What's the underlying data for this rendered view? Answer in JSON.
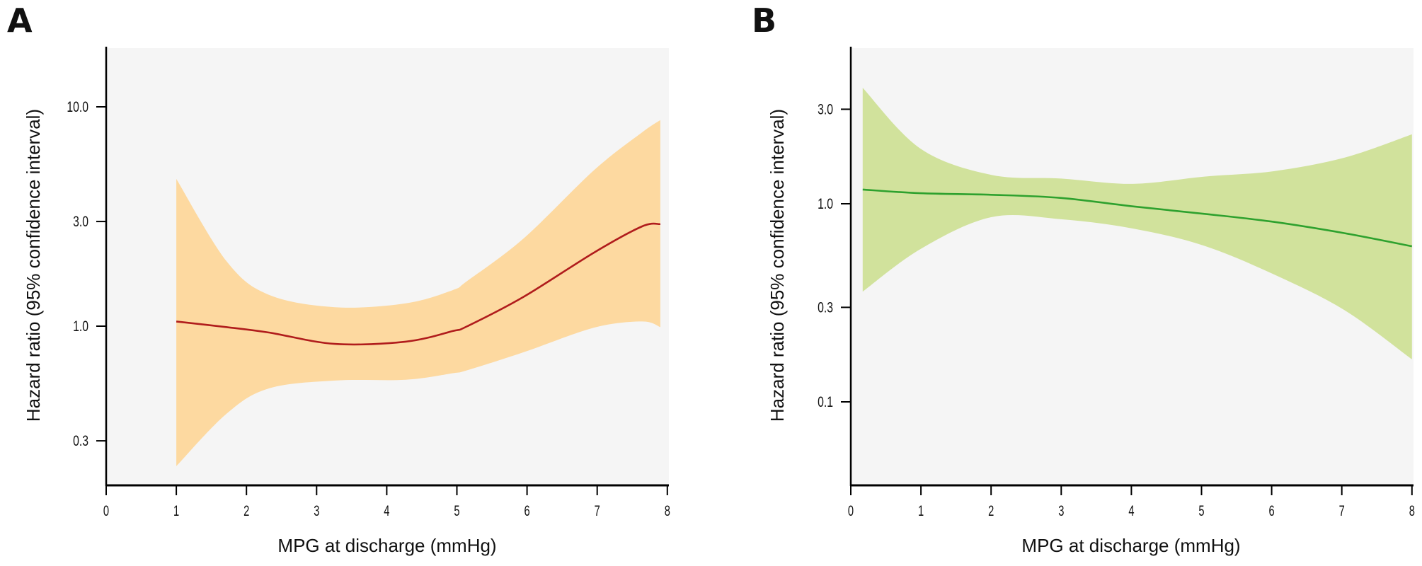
{
  "figure": {
    "background": "#ffffff",
    "plot_background": "#f5f5f5",
    "axis_color": "#000000"
  },
  "chart_data": [
    {
      "panel": "A",
      "type": "line",
      "band": true,
      "title": "",
      "xlabel": "MPG at discharge (mmHg)",
      "ylabel": "Hazard ratio (95% confidence interval)",
      "xscale": "linear",
      "yscale": "log",
      "xlim": [
        0,
        8
      ],
      "ylim": [
        0.175,
        15.5
      ],
      "xticks": [
        0,
        1,
        2,
        3,
        4,
        5,
        6,
        7,
        8
      ],
      "xtick_labels": [
        "0",
        "1",
        "2",
        "3",
        "4",
        "5",
        "6",
        "7",
        "8"
      ],
      "yticks": [
        0.3,
        1.0,
        3.0,
        10.0
      ],
      "ytick_labels": [
        "0.3",
        "1.0",
        "3.0",
        "10.0"
      ],
      "grid": false,
      "line_color": "#b01c1c",
      "band_color": "#fdd9a0",
      "series": [
        {
          "name": "Hazard ratio",
          "x": [
            1.0,
            1.72,
            2.32,
            3.26,
            4.27,
            4.94,
            5.15,
            5.95,
            6.96,
            7.64,
            7.9
          ],
          "values": [
            1.05,
            0.99,
            0.935,
            0.83,
            0.85,
            0.95,
            1.0,
            1.36,
            2.17,
            2.85,
            2.92
          ],
          "lower": [
            0.23,
            0.4,
            0.52,
            0.565,
            0.57,
            0.61,
            0.63,
            0.76,
            0.985,
            1.05,
            0.99
          ],
          "upper": [
            4.69,
            1.97,
            1.39,
            1.22,
            1.27,
            1.46,
            1.61,
            2.51,
            5.16,
            7.65,
            8.7
          ]
        }
      ]
    },
    {
      "panel": "B",
      "type": "line",
      "band": true,
      "title": "",
      "xlabel": "MPG at discharge (mmHg)",
      "ylabel": "Hazard ratio (95% confidence interval)",
      "xscale": "linear",
      "yscale": "log",
      "xlim": [
        0,
        8
      ],
      "ylim": [
        0.0176,
        6.0
      ],
      "xticks": [
        0,
        1,
        2,
        3,
        4,
        5,
        6,
        7,
        8
      ],
      "xtick_labels": [
        "0",
        "1",
        "2",
        "3",
        "4",
        "5",
        "6",
        "7",
        "8"
      ],
      "yticks": [
        0.1,
        0.3,
        1.0,
        3.0
      ],
      "ytick_labels": [
        "0.1",
        "0.3",
        "1.0",
        "3.0"
      ],
      "grid": false,
      "line_color": "#2ea12e",
      "band_color": "#d1e29c",
      "series": [
        {
          "name": "Hazard ratio",
          "x": [
            0.17,
            0.99,
            2.0,
            3.0,
            4.02,
            5.03,
            6.03,
            7.04,
            8.0
          ],
          "values": [
            1.18,
            1.13,
            1.11,
            1.07,
            0.97,
            0.89,
            0.81,
            0.71,
            0.61
          ],
          "lower": [
            0.36,
            0.59,
            0.855,
            0.835,
            0.75,
            0.615,
            0.44,
            0.29,
            0.164
          ],
          "upper": [
            3.85,
            1.9,
            1.4,
            1.34,
            1.26,
            1.37,
            1.46,
            1.71,
            2.24
          ]
        }
      ]
    }
  ]
}
